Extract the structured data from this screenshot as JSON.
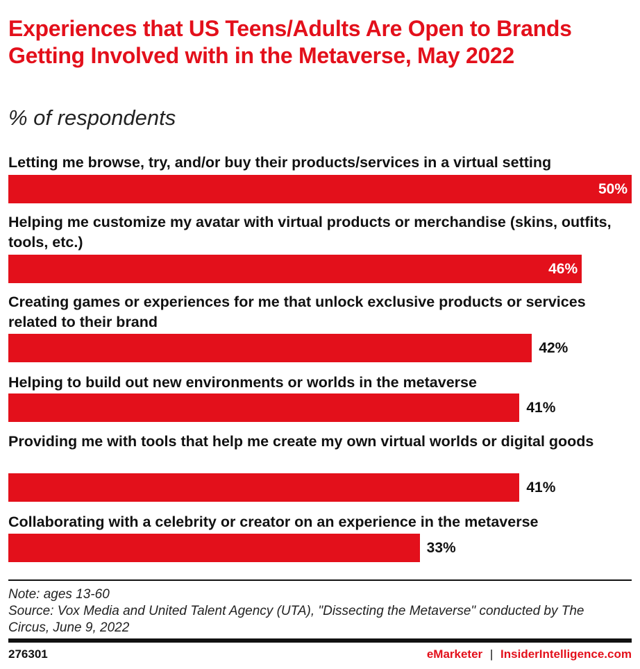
{
  "chart_data": {
    "type": "bar",
    "orientation": "horizontal",
    "title": "Experiences that US Teens/Adults Are Open to Brands Getting Involved with in the Metaverse, May 2022",
    "subtitle": "% of respondents",
    "categories": [
      "Letting me browse, try, and/or buy their products/services in a virtual setting",
      "Helping me customize my avatar with virtual products or merchandise (skins, outfits, tools, etc.)",
      "Creating games or experiences for me that unlock exclusive products or services related to their brand",
      "Helping to build out new environments or worlds in the metaverse",
      "Providing me with tools that help me create my own virtual worlds or digital goods",
      "Collaborating with a celebrity or creator on an experience in the metaverse"
    ],
    "values": [
      50,
      46,
      42,
      41,
      41,
      33
    ],
    "data_labels": [
      "50%",
      "46%",
      "42%",
      "41%",
      "41%",
      "33%"
    ],
    "xlim": [
      0,
      50
    ],
    "grid": false,
    "bar_color": "#e3101b"
  },
  "note": "Note: ages 13-60",
  "source": "Source: Vox Media and United Talent Agency (UTA), \"Dissecting the Metaverse\" conducted by The Circus, June 9, 2022",
  "footer": {
    "id": "276301",
    "brand1": "eMarketer",
    "separator": "|",
    "brand2": "InsiderIntelligence.com"
  },
  "colors": {
    "accent": "#e3101b",
    "text": "#111111"
  }
}
